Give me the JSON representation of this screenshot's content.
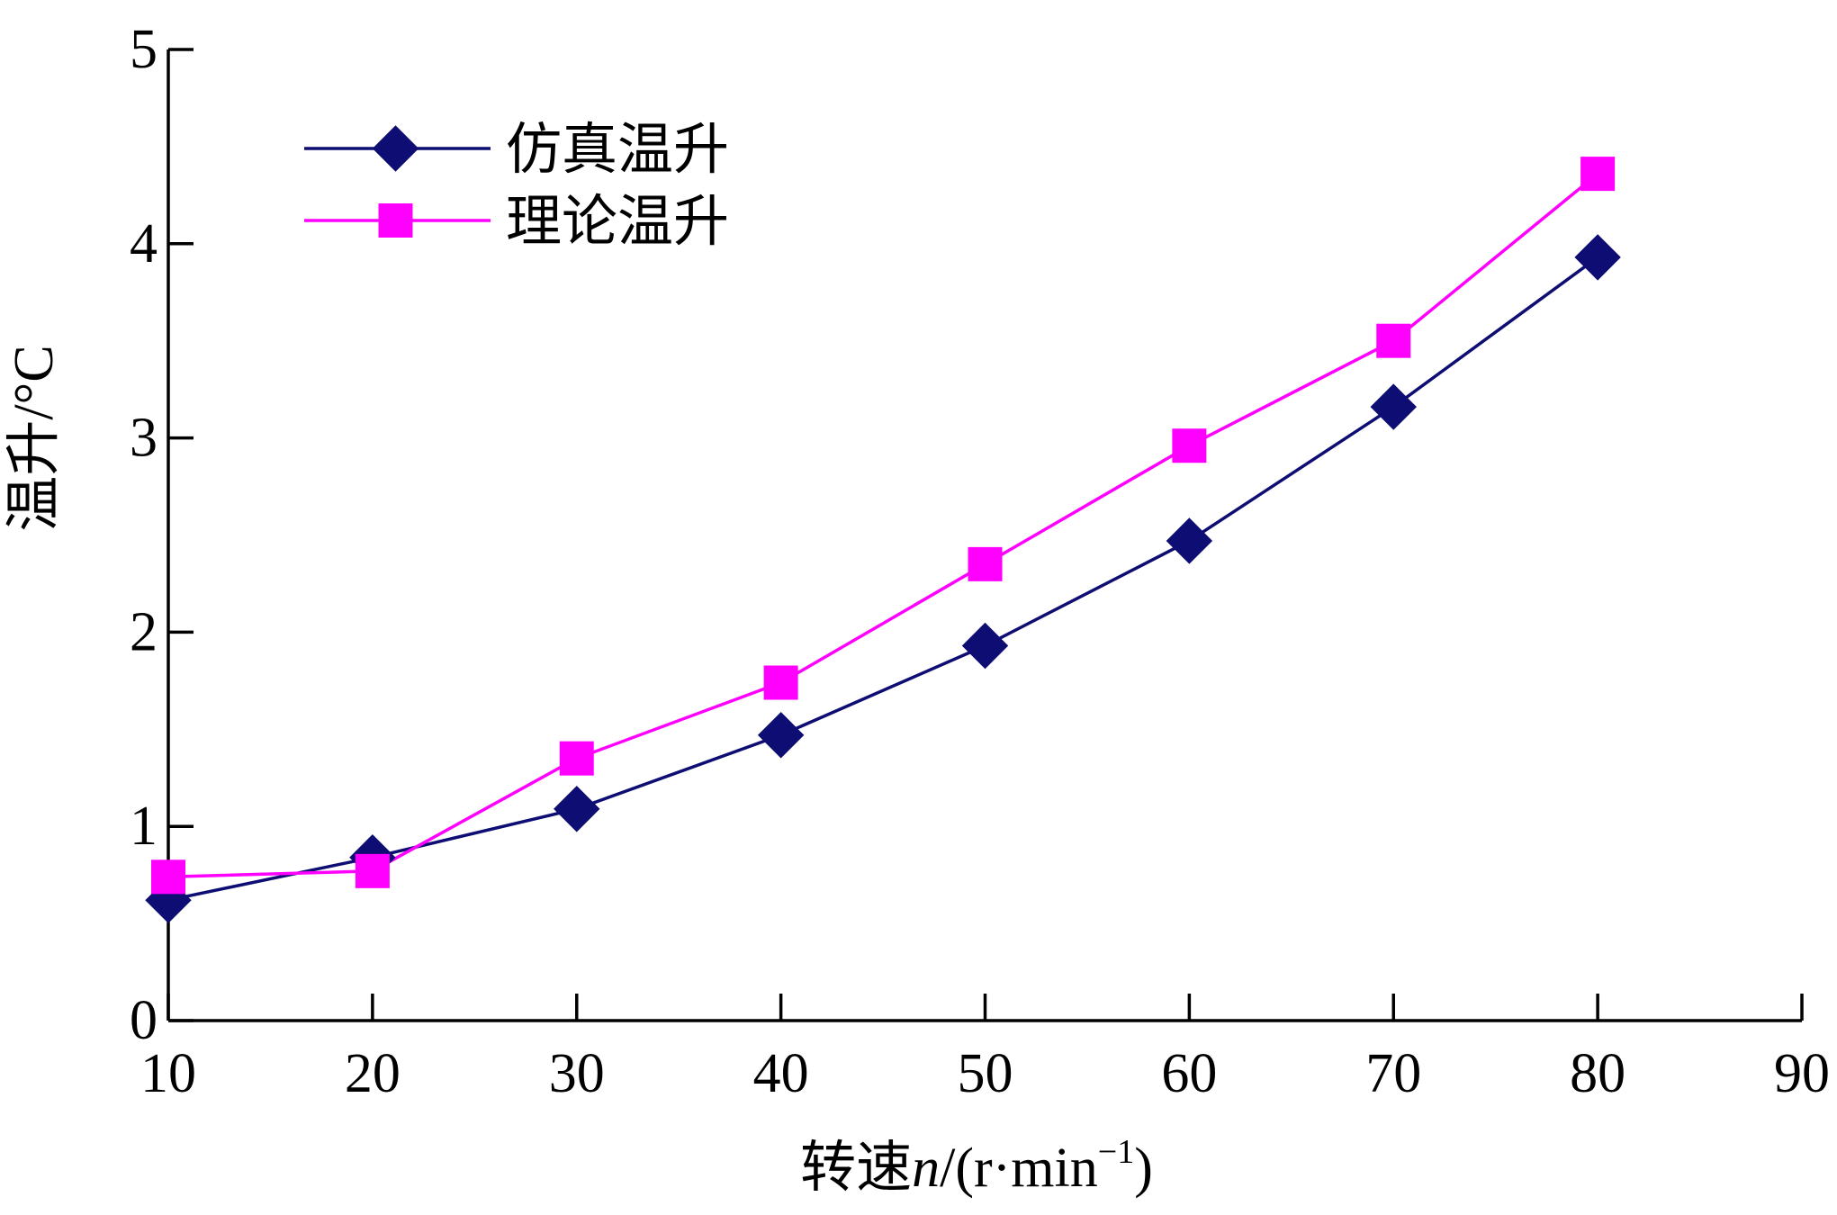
{
  "chart_data": {
    "type": "line",
    "title": "",
    "xlabel_prefix": "转速",
    "xlabel_var": "n",
    "xlabel_unit_open": "/(r·min",
    "xlabel_unit_exp": "−1",
    "xlabel_unit_close": ")",
    "ylabel": "温升/°C",
    "xlim": [
      10,
      90
    ],
    "ylim": [
      0,
      5
    ],
    "xticks": [
      "10",
      "20",
      "30",
      "40",
      "50",
      "60",
      "70",
      "80",
      "90"
    ],
    "yticks": [
      "0",
      "1",
      "2",
      "3",
      "4",
      "5"
    ],
    "grid": false,
    "legend_position": "top-left",
    "x": [
      10,
      20,
      30,
      40,
      50,
      60,
      70,
      80
    ],
    "series": [
      {
        "name": "仿真温升",
        "color": "#0d0d73",
        "marker": "diamond",
        "values": [
          0.62,
          0.84,
          1.09,
          1.47,
          1.93,
          2.47,
          3.16,
          3.93
        ]
      },
      {
        "name": "理论温升",
        "color": "#ff00ff",
        "marker": "square",
        "values": [
          0.74,
          0.77,
          1.35,
          1.74,
          2.35,
          2.96,
          3.5,
          4.36
        ]
      }
    ]
  }
}
